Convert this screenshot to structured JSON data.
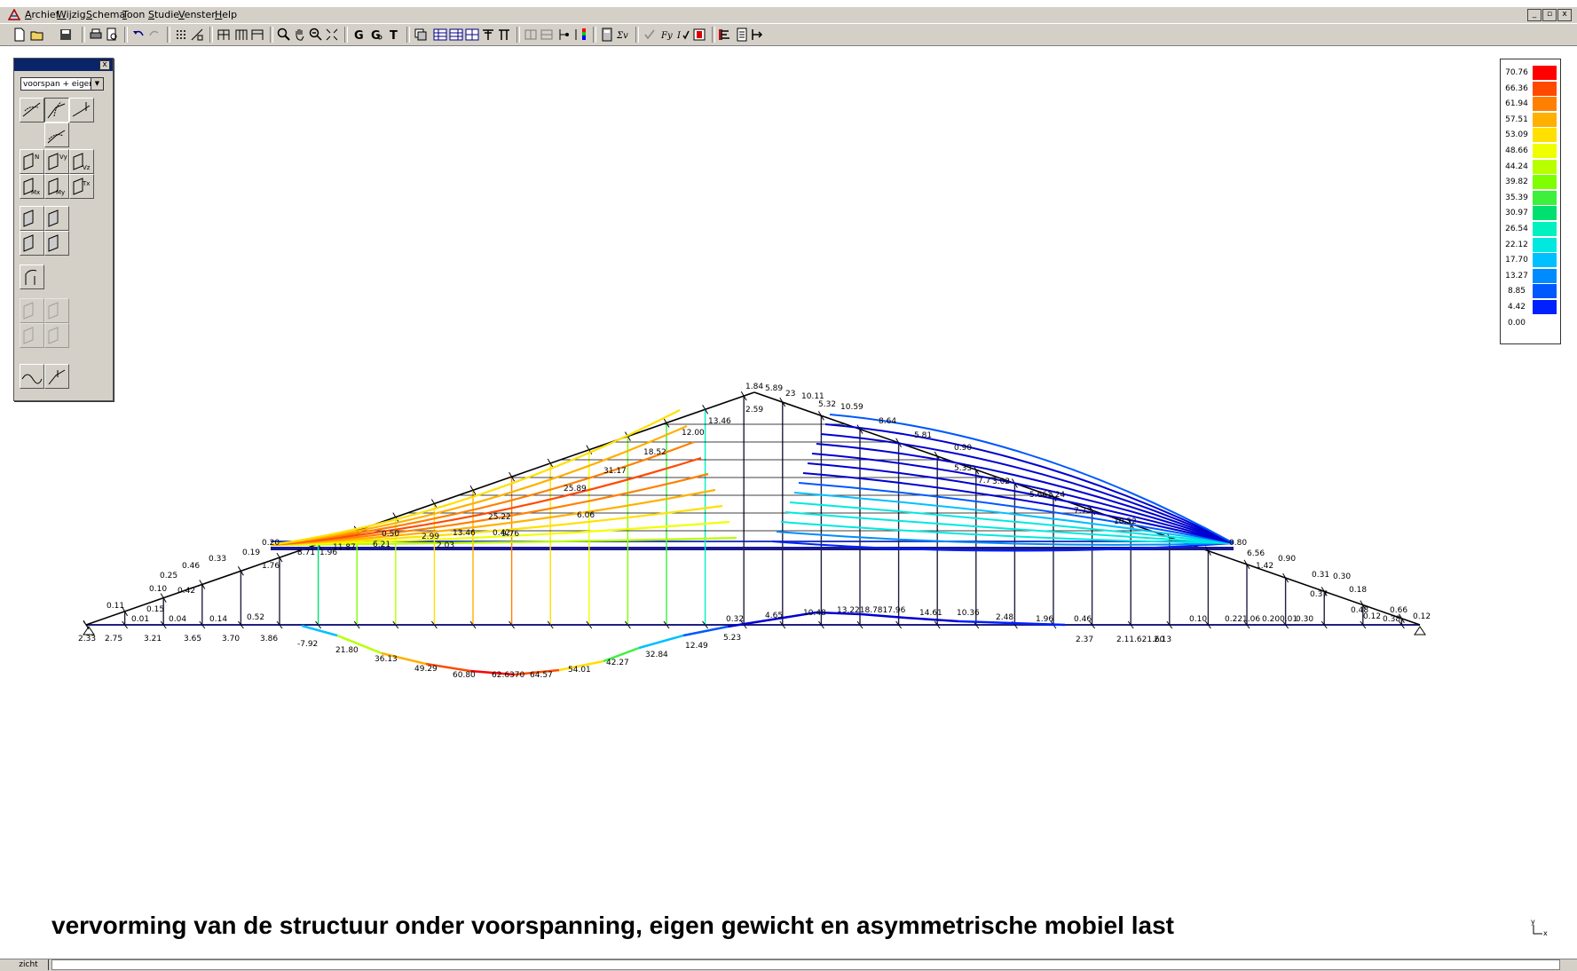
{
  "menubar": {
    "items": [
      "Archief",
      "Wijzig",
      "Schema",
      "Toon",
      "Studie",
      "Venster",
      "Help"
    ],
    "window_controls": [
      "_",
      "▫",
      "x"
    ]
  },
  "palette": {
    "dropdown_value": "voorspan + eigen",
    "close_label": "x"
  },
  "legend": {
    "values": [
      "70.76",
      "66.36",
      "61.94",
      "57.51",
      "53.09",
      "48.66",
      "44.24",
      "39.82",
      "35.39",
      "30.97",
      "26.54",
      "22.12",
      "17.70",
      "13.27",
      "8.85",
      "4.42",
      "0.00"
    ],
    "colors": [
      "#ff0000",
      "#ff4a00",
      "#ff8000",
      "#ffb000",
      "#ffe000",
      "#f0ff00",
      "#b8ff00",
      "#7dff00",
      "#3cf03c",
      "#00e070",
      "#00f0c0",
      "#00e8e0",
      "#00c0ff",
      "#008cff",
      "#0058ff",
      "#0020ff",
      "#0000d0"
    ]
  },
  "diagram": {
    "top_labels": [
      "1.84",
      "5.89",
      "23",
      "10.11",
      "5.32",
      "10.59",
      "8.64",
      "5.81",
      "0.90",
      "5.33",
      "3.02",
      "7.7",
      "5.66",
      "1.24",
      "7.73",
      "10.52",
      "2.59",
      "13.46",
      "12.00",
      "31.17",
      "18.52",
      "25.89",
      "6.06",
      "25.22",
      "9.76",
      "0.42",
      "13.46",
      "2.99",
      "6.21",
      "0.50",
      "2.03",
      "11.87",
      "0.20",
      "0.19",
      "0.33",
      "0.46",
      "0.25",
      "0.10",
      "0.42",
      "0.11",
      "0.15",
      "0.01",
      "0.04",
      "0.14",
      "0.52",
      "1.76",
      "8.71",
      "1.96",
      "0.80",
      "6.56",
      "1.42",
      "0.90",
      "0.31",
      "0.30",
      "0.37",
      "0.18",
      "0.48",
      "0.66",
      "0.12",
      "0.38",
      "0.12"
    ],
    "bottom_labels": [
      "2.33",
      "2.75",
      "3.21",
      "3.65",
      "3.70",
      "3.86",
      "-7.92",
      "21.80",
      "36.13",
      "49.29",
      "60.80",
      "62.6370",
      "64.57",
      "54.01",
      "42.27",
      "32.84",
      "12.49",
      "5.23",
      "0.32",
      "4.65",
      "10.48",
      "13.2218.7817.96",
      "14.61",
      "10.36",
      "2.48",
      "1.96",
      "0.46",
      "2.37",
      "2.11.621.60",
      "2.13",
      "0.10",
      "0.221.06",
      "0.200.01",
      "0.30"
    ]
  },
  "caption": "vervorming van de structuur onder voorspanning, eigen gewicht en asymmetrische mobiel last",
  "axis_glyph": {
    "y": "y",
    "x": "x"
  },
  "statusbar": {
    "tab_label": "zicht"
  }
}
